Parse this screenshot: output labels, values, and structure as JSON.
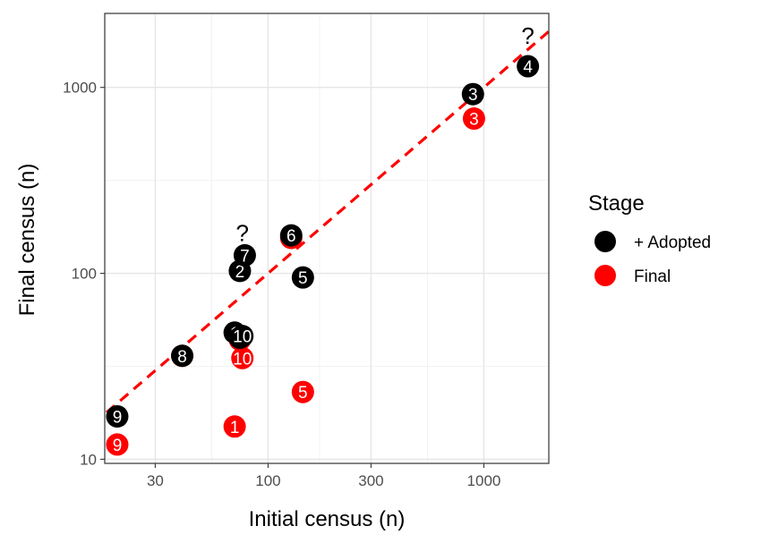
{
  "chart_data": {
    "type": "scatter",
    "title": "",
    "xlabel": "Initial census (n)",
    "ylabel": "Final census (n)",
    "xscale": "log",
    "yscale": "log",
    "xlim": [
      17.5,
      2000
    ],
    "ylim": [
      9.5,
      2500
    ],
    "xticks": [
      30,
      100,
      300,
      1000
    ],
    "xtick_labels": [
      "30",
      "100",
      "300",
      "1000"
    ],
    "yticks": [
      10,
      100,
      1000
    ],
    "ytick_labels": [
      "10",
      "100",
      "1000"
    ],
    "grid": true,
    "legend": {
      "title": "Stage",
      "position": "right",
      "entries": [
        {
          "label": "+ Adopted",
          "color": "#000000"
        },
        {
          "label": "Final",
          "color": "#ff0000"
        }
      ]
    },
    "series": [
      {
        "name": "Final",
        "color": "#ff0000",
        "points": [
          {
            "label": "9",
            "x": 20,
            "y": 12
          },
          {
            "label": "1",
            "x": 70,
            "y": 15
          },
          {
            "label": "5",
            "x": 145,
            "y": 23
          },
          {
            "label": "10",
            "x": 76,
            "y": 35
          },
          {
            "label": "8",
            "x": 40,
            "y": 36
          },
          {
            "label": "2",
            "x": 74,
            "y": 44
          },
          {
            "label": "6",
            "x": 128,
            "y": 155
          },
          {
            "label": "3",
            "x": 900,
            "y": 680
          }
        ]
      },
      {
        "name": "+ Adopted",
        "color": "#000000",
        "points": [
          {
            "label": "9",
            "x": 20,
            "y": 17
          },
          {
            "label": "8",
            "x": 40,
            "y": 36
          },
          {
            "label": "1",
            "x": 70,
            "y": 48
          },
          {
            "label": "2",
            "x": 74,
            "y": 45
          },
          {
            "label": "10",
            "x": 76,
            "y": 46
          },
          {
            "label": "5",
            "x": 145,
            "y": 95
          },
          {
            "label": "2",
            "x": 74,
            "y": 103
          },
          {
            "label": "7",
            "x": 78,
            "y": 125
          },
          {
            "label": "6",
            "x": 128,
            "y": 160
          },
          {
            "label": "3",
            "x": 890,
            "y": 920
          },
          {
            "label": "4",
            "x": 1600,
            "y": 1300
          }
        ]
      }
    ],
    "reference_line": {
      "type": "identity",
      "color": "#ff0000",
      "style": "dashed"
    },
    "annotations": [
      {
        "text": "?",
        "x": 76,
        "y": 165
      },
      {
        "text": "?",
        "x": 1600,
        "y": 1900
      }
    ]
  }
}
